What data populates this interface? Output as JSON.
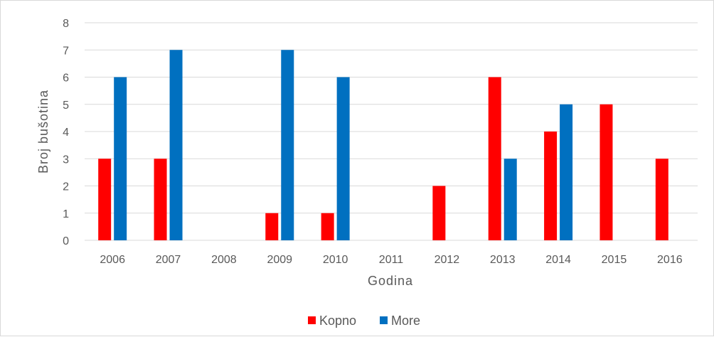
{
  "chart_data": {
    "type": "bar",
    "title": "",
    "xlabel": "Godina",
    "ylabel": "Broj bušotina",
    "ylim": [
      0,
      8
    ],
    "yticks": [
      0,
      1,
      2,
      3,
      4,
      5,
      6,
      7,
      8
    ],
    "grid": true,
    "legend_position": "bottom",
    "categories": [
      "2006",
      "2007",
      "2008",
      "2009",
      "2010",
      "2011",
      "2012",
      "2013",
      "2014",
      "2015",
      "2016"
    ],
    "series": [
      {
        "name": "Kopno",
        "color": "#ff0000",
        "values": [
          3,
          3,
          0,
          1,
          1,
          0,
          2,
          6,
          4,
          5,
          3
        ]
      },
      {
        "name": "More",
        "color": "#0070c0",
        "values": [
          6,
          7,
          0,
          7,
          6,
          0,
          0,
          3,
          5,
          0,
          0
        ]
      }
    ]
  }
}
